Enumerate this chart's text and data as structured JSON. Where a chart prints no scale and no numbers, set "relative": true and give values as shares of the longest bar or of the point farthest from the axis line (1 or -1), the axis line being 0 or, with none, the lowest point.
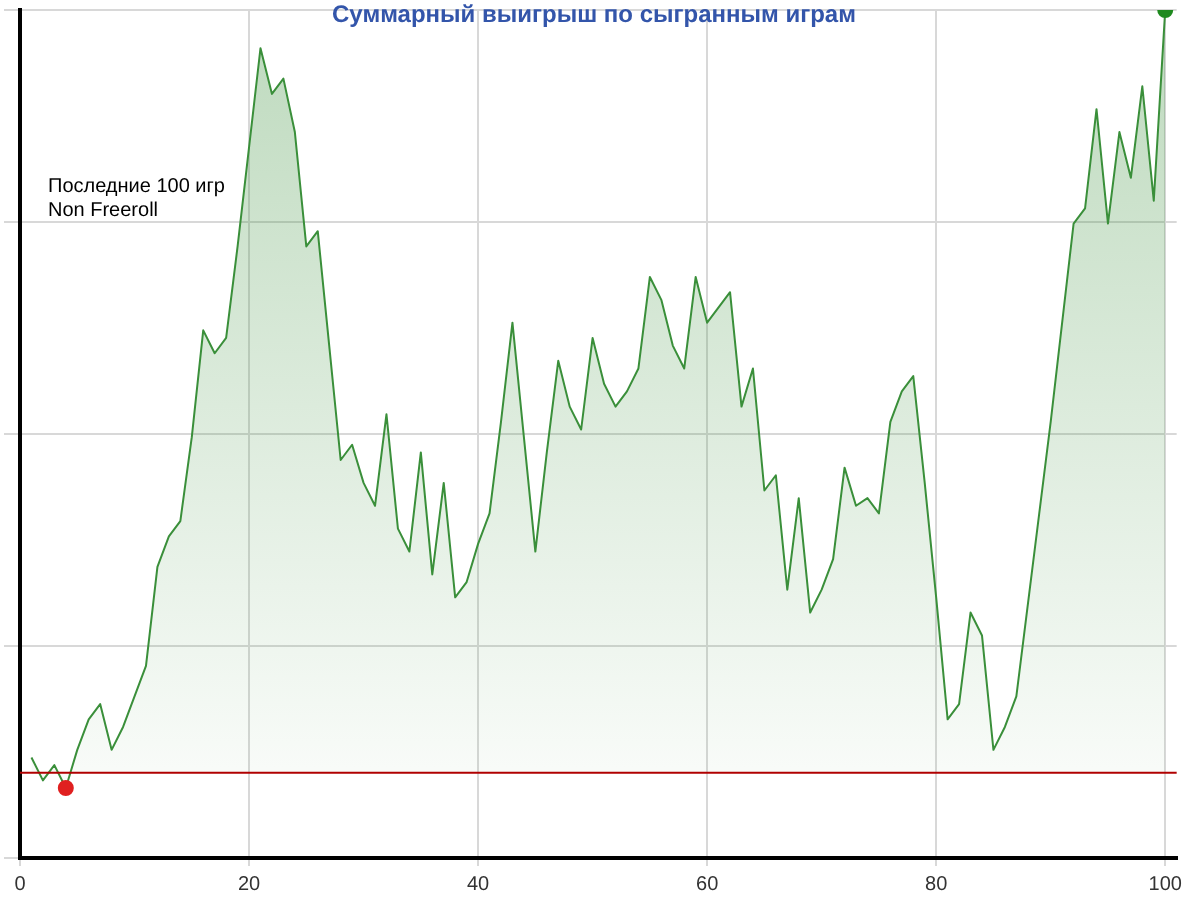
{
  "chart_data": {
    "type": "area",
    "title": "Суммарный выигрыш по сыгранным играм",
    "annotations": [
      "Последние 100 игр",
      "Non Freeroll"
    ],
    "relative": true,
    "xlim": [
      0,
      101
    ],
    "xticks": [
      0,
      20,
      40,
      60,
      80,
      100
    ],
    "grid": true,
    "legend": false,
    "marker": "none",
    "ref_lines": [
      {
        "axis": "y",
        "value": 0,
        "color": "#b00000"
      }
    ],
    "series": [
      {
        "color": "#3a8f3a",
        "x": [
          1,
          2,
          3,
          4,
          5,
          6,
          7,
          8,
          9,
          10,
          11,
          12,
          13,
          14,
          15,
          16,
          17,
          18,
          19,
          20,
          21,
          22,
          23,
          24,
          25,
          26,
          27,
          28,
          29,
          30,
          31,
          32,
          33,
          34,
          35,
          36,
          37,
          38,
          39,
          40,
          41,
          42,
          43,
          44,
          45,
          46,
          47,
          48,
          49,
          50,
          51,
          52,
          53,
          54,
          55,
          56,
          57,
          58,
          59,
          60,
          61,
          62,
          63,
          64,
          65,
          66,
          67,
          68,
          69,
          70,
          71,
          72,
          73,
          74,
          75,
          76,
          77,
          78,
          79,
          80,
          81,
          82,
          83,
          84,
          85,
          86,
          87,
          88,
          89,
          90,
          91,
          92,
          93,
          94,
          95,
          96,
          97,
          98,
          99,
          100
        ],
        "values": [
          0.02,
          -0.01,
          0.01,
          -0.02,
          0.03,
          0.07,
          0.09,
          0.03,
          0.06,
          0.1,
          0.14,
          0.27,
          0.31,
          0.33,
          0.44,
          0.58,
          0.55,
          0.57,
          0.69,
          0.82,
          0.95,
          0.89,
          0.91,
          0.84,
          0.69,
          0.71,
          0.56,
          0.41,
          0.43,
          0.38,
          0.35,
          0.47,
          0.32,
          0.29,
          0.42,
          0.26,
          0.38,
          0.23,
          0.25,
          0.3,
          0.34,
          0.46,
          0.59,
          0.44,
          0.29,
          0.42,
          0.54,
          0.48,
          0.45,
          0.57,
          0.51,
          0.48,
          0.5,
          0.53,
          0.65,
          0.62,
          0.56,
          0.53,
          0.65,
          0.59,
          0.61,
          0.63,
          0.48,
          0.53,
          0.37,
          0.39,
          0.24,
          0.36,
          0.21,
          0.24,
          0.28,
          0.4,
          0.35,
          0.36,
          0.34,
          0.46,
          0.5,
          0.52,
          0.38,
          0.23,
          0.07,
          0.09,
          0.21,
          0.18,
          0.03,
          0.06,
          0.1,
          0.22,
          0.34,
          0.46,
          0.59,
          0.72,
          0.74,
          0.87,
          0.72,
          0.84,
          0.78,
          0.9,
          0.75,
          1
        ]
      },
      {
        "type": "scatter",
        "marker": "circle",
        "colors": [
          "#e02020",
          "#1f8a1f"
        ],
        "x": [
          4,
          100
        ],
        "values": [
          -0.02,
          1
        ]
      }
    ]
  }
}
